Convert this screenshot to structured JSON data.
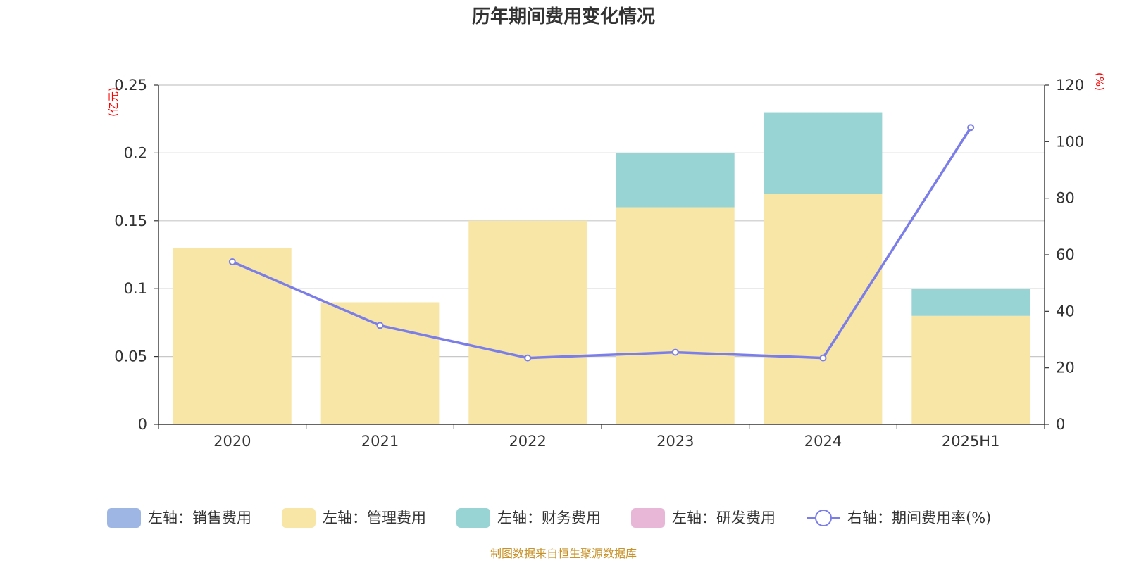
{
  "chart_data": {
    "type": "bar",
    "title": "历年期间费用变化情况",
    "categories": [
      "2020",
      "2021",
      "2022",
      "2023",
      "2024",
      "2025H1"
    ],
    "left_axis": {
      "unit": "(亿元)",
      "ylim": [
        0,
        0.25
      ],
      "ticks": [
        "0",
        "0.05",
        "0.1",
        "0.15",
        "0.2",
        "0.25"
      ]
    },
    "right_axis": {
      "unit": "(%)",
      "ylim": [
        0,
        120
      ],
      "ticks": [
        "0",
        "20",
        "40",
        "60",
        "80",
        "100",
        "120"
      ]
    },
    "series": [
      {
        "name": "左轴：销售费用",
        "type": "bar",
        "axis": "left",
        "color": "#9db6e3",
        "values": [
          0,
          0,
          0,
          0,
          0,
          0
        ]
      },
      {
        "name": "左轴：管理费用",
        "type": "bar",
        "axis": "left",
        "color": "#f7e6a6",
        "values": [
          0.13,
          0.09,
          0.15,
          0.16,
          0.17,
          0.08
        ]
      },
      {
        "name": "左轴：财务费用",
        "type": "bar",
        "axis": "left",
        "color": "#98d4d4",
        "values": [
          0,
          0,
          0,
          0.04,
          0.06,
          0.02
        ]
      },
      {
        "name": "左轴：研发费用",
        "type": "bar",
        "axis": "left",
        "color": "#e8b7d8",
        "values": [
          0,
          0,
          0,
          0,
          0,
          0
        ]
      },
      {
        "name": "右轴：期间费用率(%)",
        "type": "line",
        "axis": "right",
        "color": "#7b7ee8",
        "values": [
          57.5,
          35,
          23.5,
          25.5,
          23.5,
          105
        ]
      }
    ],
    "source": "制图数据来自恒生聚源数据库"
  }
}
